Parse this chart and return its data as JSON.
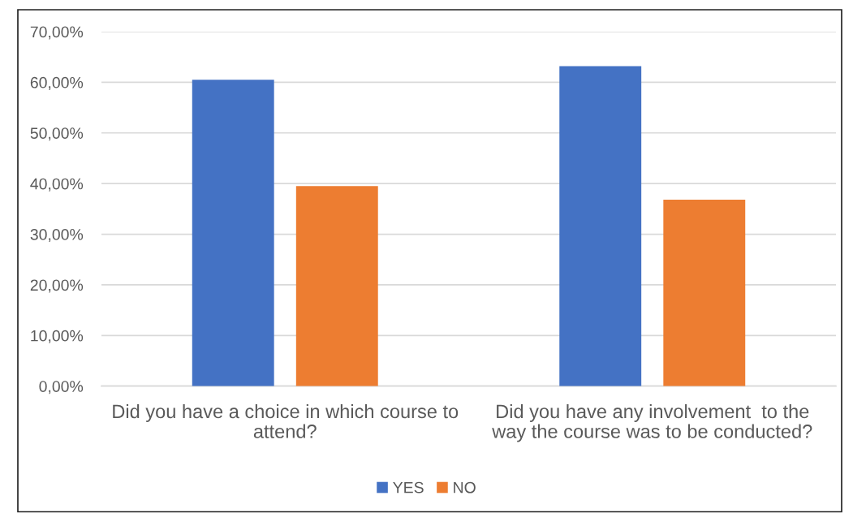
{
  "chart_data": {
    "type": "bar",
    "categories": [
      "Did you have a choice in which course to\nattend?",
      "Did you have any involvement  to the\nway the course was to be conducted?"
    ],
    "series": [
      {
        "name": "YES",
        "color": "#4472c4",
        "values": [
          60.5,
          63.2
        ]
      },
      {
        "name": "NO",
        "color": "#ed7d31",
        "values": [
          39.5,
          36.8
        ]
      }
    ],
    "ylim": [
      0,
      70
    ],
    "yticks": [
      {
        "value": 0,
        "label": "0,00%"
      },
      {
        "value": 10,
        "label": "10,00%"
      },
      {
        "value": 20,
        "label": "20,00%"
      },
      {
        "value": 30,
        "label": "30,00%"
      },
      {
        "value": 40,
        "label": "40,00%"
      },
      {
        "value": 50,
        "label": "50,00%"
      },
      {
        "value": 60,
        "label": "60,00%"
      },
      {
        "value": 70,
        "label": "70,00%"
      }
    ],
    "grid": "y",
    "legend": "bottom"
  }
}
